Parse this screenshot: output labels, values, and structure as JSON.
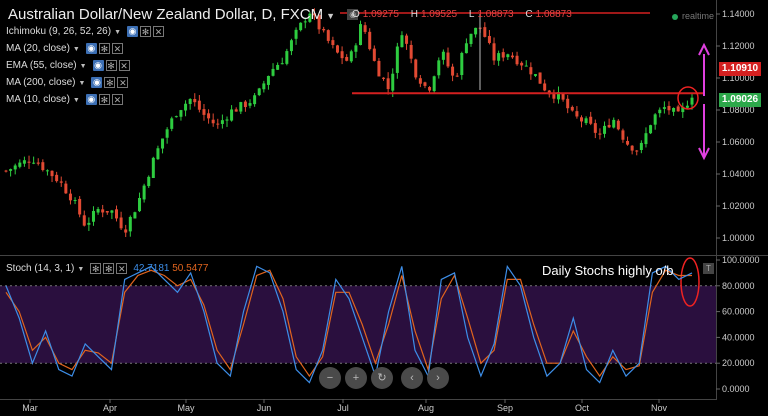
{
  "header": {
    "title": "Australian Dollar/New Zealand Dollar, D, FXCM",
    "ohlc": {
      "o_label": "O",
      "o": "1.09275",
      "h_label": "H",
      "h": "1.09525",
      "l_label": "L",
      "l": "1.08873",
      "c_label": "C",
      "c": "1.08873"
    },
    "realtime": "realtime"
  },
  "indicators": [
    {
      "label": "Ichimoku (9, 26, 52, 26)"
    },
    {
      "label": "MA (20, close)"
    },
    {
      "label": "EMA (55, close)"
    },
    {
      "label": "MA (200, close)"
    },
    {
      "label": "MA (10, close)"
    }
  ],
  "stoch": {
    "label": "Stoch (14, 3, 1)",
    "k": "42.7181",
    "d": "50.5477"
  },
  "annotation": "Daily Stochs highly o/b",
  "price_tags": {
    "upper": "1.10910",
    "current": "1.09026"
  },
  "colors": {
    "up": "#2ecc40",
    "down": "#e24a33",
    "ref_line": "#d42020",
    "arrow": "#e040e0",
    "k_line": "#3d8ee8",
    "d_line": "#e0641e",
    "stoch_bg": "#2a0f3e"
  },
  "nav_icons": [
    "zoom-out-icon",
    "zoom-in-icon",
    "reset-icon",
    "scroll-left-icon",
    "scroll-right-icon"
  ],
  "chart_data": [
    {
      "type": "candlestick",
      "title": "Australian Dollar/New Zealand Dollar, D, FXCM",
      "x_ticks": [
        "Mar",
        "Apr",
        "May",
        "Jun",
        "Jul",
        "Aug",
        "Sep",
        "Oct",
        "Nov"
      ],
      "y_ticks": [
        "1.14000",
        "1.12000",
        "1.10000",
        "1.08000",
        "1.06000",
        "1.04000",
        "1.02000",
        "1.00000"
      ],
      "ylim": [
        0.99,
        1.145
      ],
      "close_path": [
        [
          "Feb 24",
          1.042
        ],
        [
          "Mar 1",
          1.046
        ],
        [
          "Mar 8",
          1.05
        ],
        [
          "Mar 14",
          1.043
        ],
        [
          "Mar 21",
          1.036
        ],
        [
          "Mar 28",
          1.025
        ],
        [
          "Apr 4",
          1.008
        ],
        [
          "Apr 11",
          1.018
        ],
        [
          "Apr 18",
          1.017
        ],
        [
          "Apr 22",
          1.005
        ],
        [
          "Apr 28",
          1.022
        ],
        [
          "May 4",
          1.045
        ],
        [
          "May 10",
          1.065
        ],
        [
          "May 16",
          1.08
        ],
        [
          "May 22",
          1.087
        ],
        [
          "May 27",
          1.077
        ],
        [
          "Jun 2",
          1.07
        ],
        [
          "Jun 9",
          1.079
        ],
        [
          "Jun 16",
          1.083
        ],
        [
          "Jun 22",
          1.088
        ],
        [
          "Jun 28",
          1.104
        ],
        [
          "Jul 1",
          1.112
        ],
        [
          "Jul 6",
          1.128
        ],
        [
          "Jul 9",
          1.142
        ],
        [
          "Jul 13",
          1.128
        ],
        [
          "Jul 18",
          1.116
        ],
        [
          "Jul 22",
          1.11
        ],
        [
          "Jul 26",
          1.135
        ],
        [
          "Aug 1",
          1.108
        ],
        [
          "Aug 5",
          1.093
        ],
        [
          "Aug 10",
          1.13
        ],
        [
          "Aug 15",
          1.104
        ],
        [
          "Aug 20",
          1.092
        ],
        [
          "Aug 25",
          1.117
        ],
        [
          "Aug 30",
          1.098
        ],
        [
          "Sep 5",
          1.127
        ],
        [
          "Sep 10",
          1.132
        ],
        [
          "Sep 15",
          1.112
        ],
        [
          "Sep 20",
          1.116
        ],
        [
          "Sep 25",
          1.11
        ],
        [
          "Sep 29",
          1.103
        ],
        [
          "Oct 3",
          1.092
        ],
        [
          "Oct 7",
          1.088
        ],
        [
          "Oct 11",
          1.076
        ],
        [
          "Oct 17",
          1.072
        ],
        [
          "Oct 21",
          1.064
        ],
        [
          "Oct 25",
          1.075
        ],
        [
          "Oct 31",
          1.06
        ],
        [
          "Nov 4",
          1.054
        ],
        [
          "Nov 8",
          1.075
        ],
        [
          "Nov 11",
          1.082
        ],
        [
          "Nov 14",
          1.076
        ],
        [
          "Nov 17",
          1.09
        ]
      ],
      "reference_lines": [
        1.1435,
        1.0905
      ],
      "annotations": [
        "double arrow up to ~1.126 and down to ~1.057 from 1.0905",
        "circle at current price"
      ]
    },
    {
      "type": "line",
      "title": "Stoch (14, 3, 1)",
      "y_ticks": [
        "100.0000",
        "80.0000",
        "60.0000",
        "40.0000",
        "20.0000",
        "0.0000"
      ],
      "ylim": [
        0,
        100
      ],
      "bands": [
        20,
        80
      ],
      "series": [
        {
          "name": "42.7181",
          "values": [
            80,
            55,
            20,
            45,
            15,
            10,
            35,
            25,
            15,
            85,
            90,
            95,
            85,
            75,
            90,
            60,
            20,
            10,
            60,
            95,
            90,
            60,
            15,
            5,
            30,
            85,
            70,
            40,
            10,
            60,
            95,
            30,
            10,
            85,
            90,
            40,
            10,
            35,
            95,
            80,
            40,
            10,
            20,
            55,
            15,
            5,
            30,
            10,
            20,
            90,
            95,
            85,
            90
          ]
        },
        {
          "name": "50.5477",
          "values": [
            75,
            60,
            30,
            40,
            20,
            15,
            30,
            28,
            20,
            75,
            88,
            92,
            88,
            80,
            85,
            65,
            30,
            15,
            50,
            88,
            92,
            70,
            25,
            10,
            25,
            75,
            75,
            50,
            20,
            50,
            88,
            45,
            15,
            70,
            88,
            55,
            20,
            30,
            85,
            85,
            50,
            20,
            20,
            45,
            25,
            10,
            25,
            15,
            18,
            75,
            92,
            88,
            88
          ]
        }
      ]
    }
  ]
}
